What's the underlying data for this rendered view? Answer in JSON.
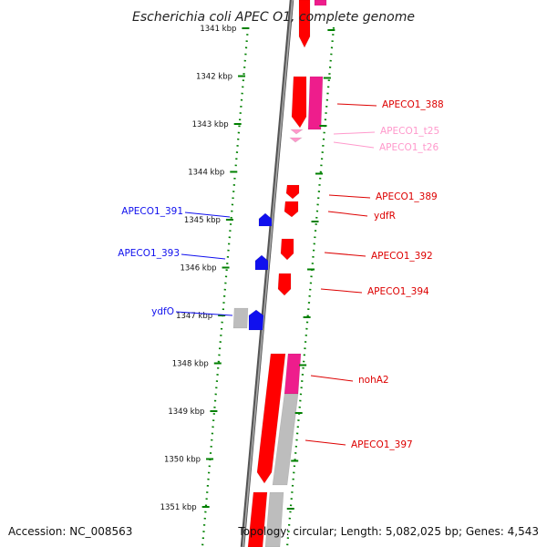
{
  "title": "Escherichia coli APEC O1, complete genome",
  "footer": {
    "accession": "Accession: NC_008563",
    "summary": "Topology: circular; Length: 5,082,025 bp; Genes: 4,543"
  },
  "colors": {
    "forward": "#ff0000",
    "forward_edge": "#b80000",
    "reverse": "#1010ee",
    "rna": "#ff99cc",
    "pink_block": "#ee1d8c",
    "grey_block": "#bdbdbd",
    "ruler": "#008000",
    "backbone": "#777777"
  },
  "ruler": {
    "ticks": [
      {
        "label": "1341 kbp"
      },
      {
        "label": "1342 kbp"
      },
      {
        "label": "1343 kbp"
      },
      {
        "label": "1344 kbp"
      },
      {
        "label": "1345 kbp"
      },
      {
        "label": "1346 kbp"
      },
      {
        "label": "1347 kbp"
      },
      {
        "label": "1348 kbp"
      },
      {
        "label": "1349 kbp"
      },
      {
        "label": "1350 kbp"
      },
      {
        "label": "1351 kbp"
      }
    ]
  },
  "genes": {
    "right": [
      {
        "label": "APECO1_388",
        "kind": "forward"
      },
      {
        "label": "APECO1_t25",
        "kind": "rna"
      },
      {
        "label": "APECO1_t26",
        "kind": "rna"
      },
      {
        "label": "APECO1_389",
        "kind": "forward"
      },
      {
        "label": "ydfR",
        "kind": "forward"
      },
      {
        "label": "APECO1_392",
        "kind": "forward"
      },
      {
        "label": "APECO1_394",
        "kind": "forward"
      },
      {
        "label": "nohA2",
        "kind": "forward"
      },
      {
        "label": "APECO1_397",
        "kind": "forward"
      }
    ],
    "left": [
      {
        "label": "APECO1_391",
        "kind": "reverse"
      },
      {
        "label": "APECO1_393",
        "kind": "reverse"
      },
      {
        "label": "ydfO",
        "kind": "reverse"
      }
    ]
  }
}
